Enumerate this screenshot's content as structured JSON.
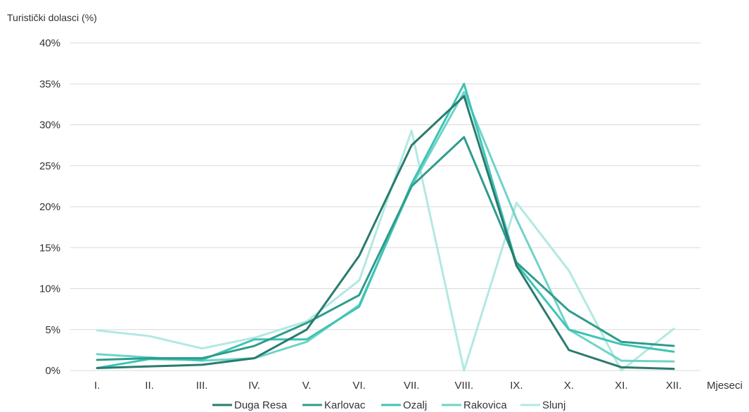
{
  "chart_data": {
    "type": "line",
    "ylabel": "Turistički dolasci (%)",
    "xlabel": "Mjeseci",
    "categories": [
      "I.",
      "II.",
      "III.",
      "IV.",
      "V.",
      "VI.",
      "VII.",
      "VIII.",
      "IX.",
      "X.",
      "XI.",
      "XII."
    ],
    "ylim": [
      0,
      40
    ],
    "yticks": [
      0,
      5,
      10,
      15,
      20,
      25,
      30,
      35,
      40
    ],
    "ytick_labels": [
      "0%",
      "5%",
      "10%",
      "15%",
      "20%",
      "25%",
      "30%",
      "35%",
      "40%"
    ],
    "grid": true,
    "legend_position": "bottom",
    "series": [
      {
        "name": "Duga Resa",
        "color": "#2a7a6e",
        "values": [
          0.3,
          0.5,
          0.7,
          1.5,
          5.0,
          14.0,
          27.5,
          33.5,
          12.8,
          2.5,
          0.4,
          0.2
        ]
      },
      {
        "name": "Karlovac",
        "color": "#2e9c8c",
        "values": [
          1.3,
          1.5,
          1.5,
          3.0,
          5.8,
          9.2,
          22.5,
          28.5,
          13.2,
          7.3,
          3.5,
          3.0
        ]
      },
      {
        "name": "Ozalj",
        "color": "#3cc4b5",
        "values": [
          0.3,
          1.4,
          1.3,
          3.8,
          3.8,
          7.8,
          22.8,
          35.0,
          13.0,
          5.0,
          3.2,
          2.3
        ]
      },
      {
        "name": "Rakovica",
        "color": "#6ed3c8",
        "values": [
          2.0,
          1.6,
          1.2,
          1.5,
          3.5,
          8.0,
          22.5,
          34.0,
          18.5,
          5.0,
          1.2,
          1.1
        ]
      },
      {
        "name": "Slunj",
        "color": "#b3e8e2",
        "values": [
          4.9,
          4.2,
          2.7,
          4.0,
          6.0,
          11.0,
          29.3,
          0.0,
          20.5,
          12.2,
          0.0,
          5.1
        ]
      }
    ]
  }
}
